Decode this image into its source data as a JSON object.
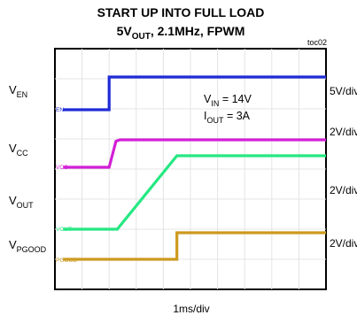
{
  "chart_data": {
    "type": "line",
    "title": "START UP INTO FULL LOAD",
    "subtitle": {
      "pre": "5V",
      "sub": "OUT",
      "post": ", 2.1MHz, FPWM"
    },
    "figure_id": "toc02",
    "x_scale": "1ms/div",
    "x_divisions": 10,
    "x_range_ms": [
      0,
      10
    ],
    "grid": true,
    "conditions": [
      {
        "pre": "V",
        "sub": "IN",
        "post": " = 14V"
      },
      {
        "pre": "I",
        "sub": "OUT",
        "post": " = 3A"
      }
    ],
    "series": [
      {
        "name": "EN",
        "side_label": {
          "pre": "V",
          "sub": "EN"
        },
        "scale": "5V/div",
        "color": "#1f2bd6",
        "points": [
          [
            0.3,
            0.0
          ],
          [
            2.0,
            0.0
          ],
          [
            2.0,
            1.0
          ],
          [
            10.0,
            1.0
          ]
        ]
      },
      {
        "name": "VCC",
        "side_label": {
          "pre": "V",
          "sub": "CC"
        },
        "scale": "2V/div",
        "color": "#d21fd6",
        "points": [
          [
            0.3,
            0.0
          ],
          [
            2.0,
            0.0
          ],
          [
            2.25,
            0.95
          ],
          [
            2.4,
            1.0
          ],
          [
            10.0,
            1.0
          ]
        ]
      },
      {
        "name": "VOUT",
        "side_label": {
          "pre": "V",
          "sub": "OUT"
        },
        "scale": "2V/div",
        "color": "#25e882",
        "points": [
          [
            0.3,
            0.0
          ],
          [
            2.3,
            0.0
          ],
          [
            4.5,
            1.0
          ],
          [
            10.0,
            1.0
          ]
        ]
      },
      {
        "name": "PGOOD",
        "side_label": {
          "pre": "V",
          "sub": "PGOOD"
        },
        "scale": "2V/div",
        "color": "#cc9a1e",
        "points": [
          [
            0.3,
            0.0
          ],
          [
            4.5,
            0.0
          ],
          [
            4.5,
            1.0
          ],
          [
            10.0,
            1.0
          ]
        ]
      }
    ]
  }
}
